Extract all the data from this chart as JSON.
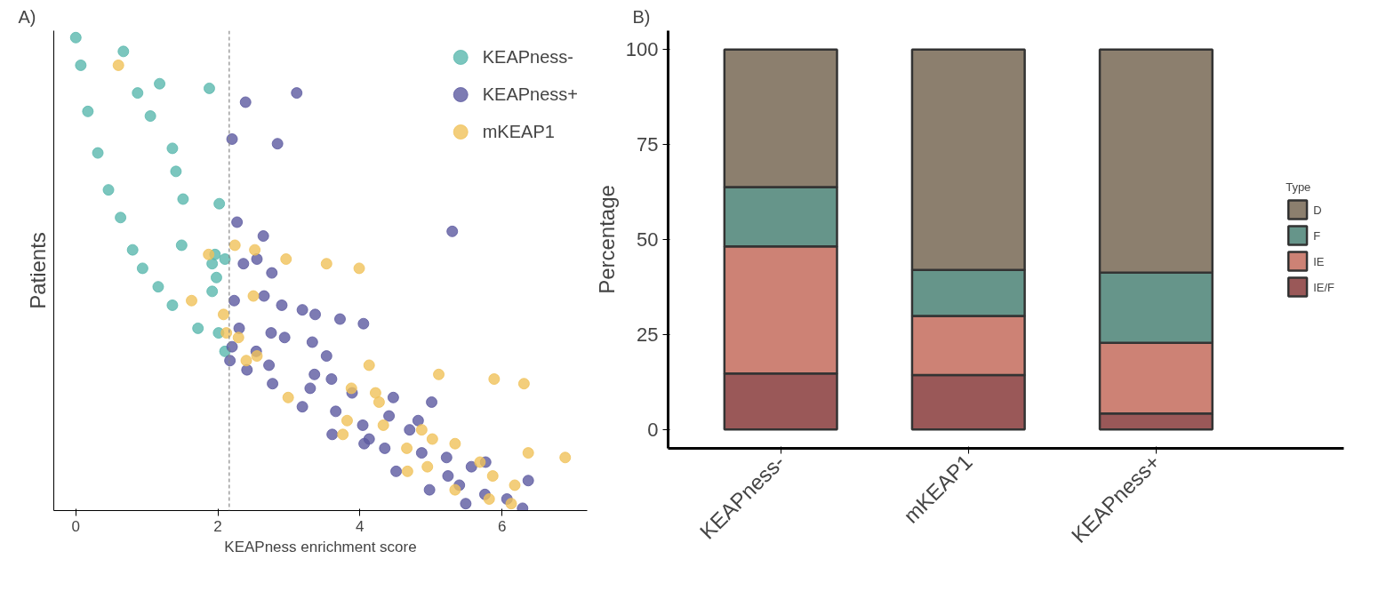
{
  "chart_data": [
    {
      "type": "scatter",
      "orientation": "horizontal",
      "annotations": [
        "A)"
      ],
      "xlabel": "KEAPness enrichment score",
      "ylabel": "Patients",
      "xlim": [
        -0.31,
        7.2
      ],
      "xticks": [
        0,
        2,
        4,
        6
      ],
      "tick_labels": "x",
      "grid": false,
      "legend": "top right",
      "marker": "circle",
      "categories": [
        null,
        null,
        null,
        null,
        null,
        null,
        null,
        null,
        null,
        null,
        null,
        null,
        null,
        null,
        null,
        null,
        null,
        null,
        null,
        null,
        null,
        null,
        null,
        null,
        null,
        null,
        null,
        null,
        null,
        null,
        null,
        null,
        null,
        null,
        null,
        null,
        null,
        null,
        null,
        null,
        null,
        null,
        null,
        null,
        null,
        null,
        null,
        null,
        null,
        null,
        null,
        null,
        null,
        null,
        null,
        null,
        null,
        null,
        null,
        null,
        null,
        null,
        null,
        null,
        null,
        null,
        null,
        null,
        null,
        null,
        null,
        null,
        null,
        null,
        null,
        null,
        null,
        null,
        null,
        null,
        null,
        null,
        null,
        null,
        null,
        null,
        null,
        null,
        null,
        null,
        null,
        null,
        null,
        null,
        null,
        null,
        null,
        null,
        null,
        null,
        null,
        null,
        null,
        null
      ],
      "ref_lines": [
        {
          "axis": "x",
          "value": 2.16,
          "label": null,
          "color": "#888888",
          "line_style": "dashed"
        }
      ],
      "series": [
        {
          "name": "KEAPness-",
          "color": "#5ab8ae",
          "values": [
            null,
            0.0,
            null,
            null,
            0.67,
            null,
            null,
            0.07,
            null,
            null,
            null,
            1.18,
            1.88,
            0.87,
            null,
            null,
            null,
            0.17,
            1.05,
            null,
            null,
            null,
            null,
            null,
            null,
            1.36,
            0.31,
            null,
            null,
            null,
            1.41,
            null,
            null,
            null,
            0.46,
            null,
            1.51,
            2.02,
            null,
            null,
            0.63,
            null,
            null,
            null,
            null,
            null,
            1.49,
            0.8,
            1.96,
            2.1,
            1.92,
            0.94,
            null,
            1.98,
            null,
            1.16,
            1.92,
            null,
            null,
            1.36,
            null,
            null,
            null,
            null,
            1.72,
            2.01,
            null,
            null,
            null,
            2.1,
            null,
            null,
            null,
            null,
            null,
            null,
            null,
            null,
            null,
            null,
            null,
            null,
            null,
            null,
            null,
            null,
            null,
            null,
            null,
            null,
            null,
            null,
            null,
            null,
            null,
            null,
            null,
            null,
            null,
            null,
            null,
            null,
            null,
            null
          ]
        },
        {
          "name": "KEAPness+",
          "color": "#5d5aa0",
          "values": [
            null,
            null,
            null,
            null,
            null,
            null,
            null,
            null,
            null,
            null,
            null,
            null,
            null,
            3.11,
            null,
            2.39,
            null,
            null,
            null,
            null,
            null,
            null,
            null,
            2.2,
            2.84,
            null,
            null,
            null,
            null,
            null,
            null,
            null,
            null,
            null,
            null,
            null,
            null,
            null,
            null,
            null,
            null,
            2.27,
            null,
            5.3,
            2.64,
            null,
            null,
            null,
            null,
            2.55,
            2.36,
            null,
            2.76,
            null,
            null,
            null,
            null,
            2.65,
            2.23,
            2.9,
            3.19,
            3.37,
            3.72,
            4.05,
            2.3,
            2.75,
            2.94,
            3.33,
            2.2,
            2.54,
            3.53,
            2.17,
            2.72,
            2.41,
            3.36,
            3.6,
            2.77,
            3.3,
            3.89,
            4.47,
            5.01,
            3.19,
            3.66,
            4.41,
            4.82,
            4.04,
            4.7,
            3.61,
            4.13,
            4.06,
            4.35,
            4.87,
            5.22,
            5.77,
            5.57,
            4.51,
            5.24,
            6.37,
            5.4,
            4.98,
            5.76,
            6.07,
            5.49,
            6.29
          ]
        },
        {
          "name": "mKEAP1",
          "color": "#f0c25a",
          "values": [
            null,
            null,
            null,
            null,
            null,
            null,
            null,
            0.6,
            null,
            null,
            null,
            null,
            null,
            null,
            null,
            null,
            null,
            null,
            null,
            null,
            null,
            null,
            null,
            null,
            null,
            null,
            null,
            null,
            null,
            null,
            null,
            null,
            null,
            null,
            null,
            null,
            null,
            null,
            null,
            null,
            null,
            null,
            null,
            null,
            null,
            null,
            2.24,
            2.52,
            1.87,
            2.96,
            3.53,
            3.99,
            null,
            null,
            null,
            null,
            null,
            2.5,
            1.63,
            null,
            null,
            2.08,
            null,
            null,
            null,
            2.12,
            2.29,
            null,
            null,
            null,
            2.55,
            2.4,
            4.13,
            null,
            5.11,
            5.89,
            6.31,
            3.88,
            4.22,
            2.99,
            4.27,
            null,
            null,
            null,
            3.82,
            4.33,
            4.87,
            3.76,
            5.02,
            5.34,
            4.66,
            6.37,
            6.89,
            5.69,
            4.95,
            4.67,
            5.87,
            null,
            6.18,
            5.34,
            null,
            5.82,
            6.13,
            null
          ]
        }
      ]
    },
    {
      "type": "bar",
      "stacked": true,
      "annotations": [
        "B)"
      ],
      "ylabel": "Percentage",
      "legend_title": "Type",
      "legend": "right",
      "grid": false,
      "ylim": [
        -5,
        105
      ],
      "yticks": [
        0,
        25,
        50,
        75,
        100
      ],
      "categories": [
        "KEAPness-",
        "mKEAP1",
        "KEAPness+"
      ],
      "series": [
        {
          "name": "IE/F",
          "color": "#9a5858",
          "values": [
            14.7,
            14.3,
            4.2
          ]
        },
        {
          "name": "IE",
          "color": "#cd8275",
          "values": [
            33.5,
            15.6,
            18.6
          ]
        },
        {
          "name": "F",
          "color": "#66958a",
          "values": [
            15.6,
            12.1,
            18.5
          ]
        },
        {
          "name": "D",
          "color": "#8c7f6e",
          "values": [
            36.2,
            58.0,
            58.7
          ]
        }
      ]
    }
  ]
}
